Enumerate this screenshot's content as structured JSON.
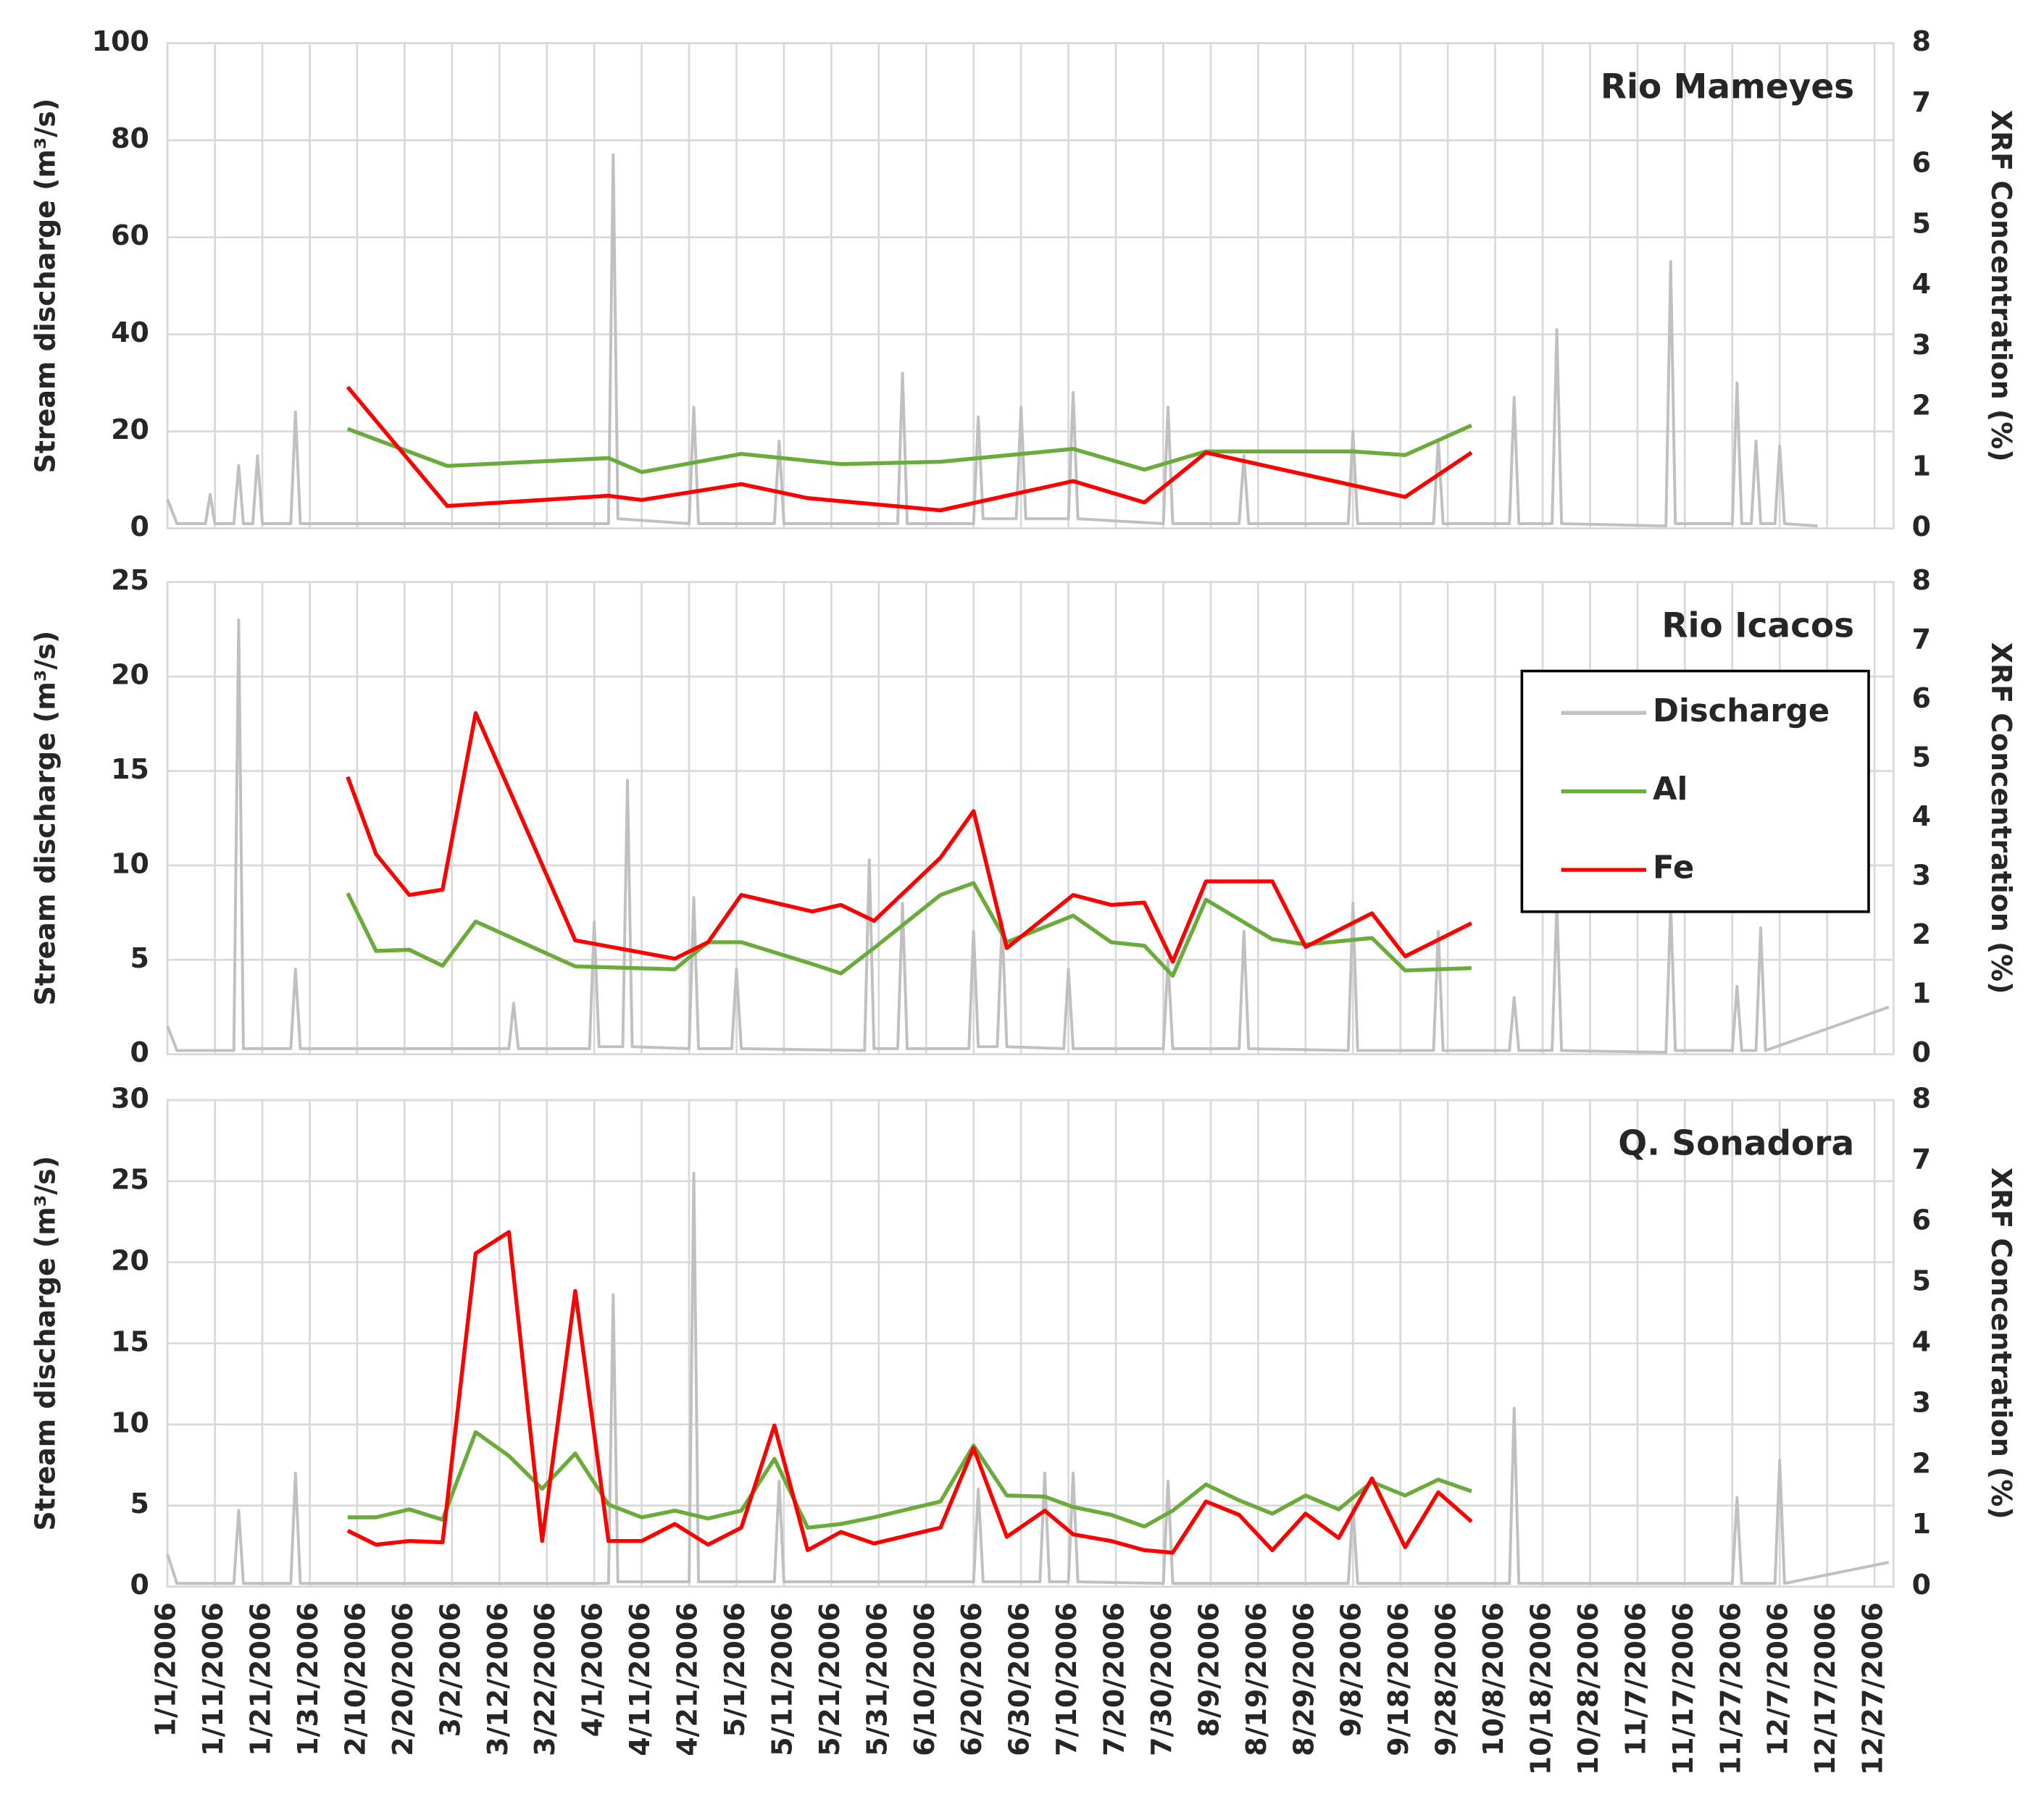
{
  "chart_data": [
    {
      "type": "line",
      "title": "Rio Mameyes",
      "ylabel": "Stream discharge (m³/s)",
      "y2label": "XRF Concentration (%)",
      "xlim": [
        "1/1/2006",
        "12/31/2006"
      ],
      "ylim": [
        0,
        100
      ],
      "yticks": [
        0,
        20,
        40,
        60,
        80,
        100
      ],
      "y2lim": [
        0,
        8
      ],
      "y2ticks": [
        0,
        1,
        2,
        3,
        4,
        5,
        6,
        7,
        8
      ],
      "grid": true,
      "series": [
        {
          "name": "Discharge",
          "color": "#c0c0c0",
          "x": [
            "1/1/2006",
            "1/3/2006",
            "1/9/2006",
            "1/10/2006",
            "1/11/2006",
            "1/15/2006",
            "1/16/2006",
            "1/17/2006",
            "1/19/2006",
            "1/20/2006",
            "1/21/2006",
            "1/27/2006",
            "1/28/2006",
            "1/29/2006",
            "4/4/2006",
            "4/5/2006",
            "4/6/2006",
            "4/21/2006",
            "4/22/2006",
            "4/23/2006",
            "5/9/2006",
            "5/10/2006",
            "5/11/2006",
            "6/4/2006",
            "6/5/2006",
            "6/6/2006",
            "6/20/2006",
            "6/21/2006",
            "6/22/2006",
            "6/29/2006",
            "6/30/2006",
            "7/1/2006",
            "7/10/2006",
            "7/11/2006",
            "7/12/2006",
            "7/30/2006",
            "7/31/2006",
            "8/1/2006",
            "8/15/2006",
            "8/16/2006",
            "8/17/2006",
            "9/7/2006",
            "9/8/2006",
            "9/9/2006",
            "9/25/2006",
            "9/26/2006",
            "9/27/2006",
            "10/11/2006",
            "10/12/2006",
            "10/13/2006",
            "10/20/2006",
            "10/21/2006",
            "10/22/2006",
            "11/13/2006",
            "11/14/2006",
            "11/15/2006",
            "11/27/2006",
            "11/28/2006",
            "11/29/2006",
            "12/1/2006",
            "12/2/2006",
            "12/3/2006",
            "12/6/2006",
            "12/7/2006",
            "12/8/2006",
            "12/15/2006"
          ],
          "values": [
            6,
            1,
            1,
            7,
            1,
            1,
            13,
            1,
            1,
            15,
            1,
            1,
            24,
            1,
            1,
            77,
            2,
            1,
            25,
            1,
            1,
            18,
            1,
            1,
            32,
            1,
            1,
            23,
            2,
            2,
            25,
            2,
            2,
            28,
            2,
            1,
            25,
            1,
            1,
            15,
            1,
            1,
            20,
            1,
            1,
            18,
            1,
            1,
            27,
            1,
            1,
            41,
            1,
            0.5,
            55,
            1,
            1,
            30,
            1,
            1,
            18,
            1,
            1,
            17,
            1,
            0.5
          ]
        },
        {
          "name": "Al",
          "color": "#6aab3c",
          "axis": "y2",
          "x": [
            "2/8/2006",
            "3/1/2006",
            "4/4/2006",
            "4/11/2006",
            "5/2/2006",
            "5/23/2006",
            "6/13/2006",
            "7/11/2006",
            "7/26/2006",
            "8/8/2006",
            "9/8/2006",
            "9/19/2006",
            "10/3/2006"
          ],
          "values": [
            1.64,
            1.03,
            1.16,
            0.93,
            1.23,
            1.06,
            1.1,
            1.31,
            0.97,
            1.27,
            1.27,
            1.21,
            1.7
          ]
        },
        {
          "name": "Fe",
          "color": "#ff0000",
          "axis": "y2",
          "x": [
            "2/8/2006",
            "3/1/2006",
            "4/4/2006",
            "4/11/2006",
            "5/2/2006",
            "5/16/2006",
            "6/13/2006",
            "7/11/2006",
            "7/26/2006",
            "8/8/2006",
            "9/19/2006",
            "10/3/2006"
          ],
          "values": [
            2.33,
            0.37,
            0.54,
            0.47,
            0.73,
            0.5,
            0.3,
            0.78,
            0.43,
            1.25,
            0.52,
            1.25
          ]
        }
      ]
    },
    {
      "type": "line",
      "title": "Rio Icacos",
      "ylabel": "Stream discharge (m³/s)",
      "y2label": "XRF Concentration (%)",
      "xlim": [
        "1/1/2006",
        "12/31/2006"
      ],
      "ylim": [
        0,
        25
      ],
      "yticks": [
        0,
        5,
        10,
        15,
        20,
        25
      ],
      "y2lim": [
        0,
        8
      ],
      "y2ticks": [
        0,
        1,
        2,
        3,
        4,
        5,
        6,
        7,
        8
      ],
      "grid": true,
      "legend": "right",
      "series": [
        {
          "name": "Discharge",
          "color": "#c0c0c0",
          "x": [
            "1/1/2006",
            "1/3/2006",
            "1/15/2006",
            "1/16/2006",
            "1/17/2006",
            "1/27/2006",
            "1/28/2006",
            "1/29/2006",
            "3/14/2006",
            "3/15/2006",
            "3/16/2006",
            "3/31/2006",
            "4/1/2006",
            "4/2/2006",
            "4/7/2006",
            "4/8/2006",
            "4/9/2006",
            "4/21/2006",
            "4/22/2006",
            "4/23/2006",
            "4/30/2006",
            "5/1/2006",
            "5/2/2006",
            "5/28/2006",
            "5/29/2006",
            "5/30/2006",
            "6/4/2006",
            "6/5/2006",
            "6/6/2006",
            "6/19/2006",
            "6/20/2006",
            "6/21/2006",
            "6/25/2006",
            "6/26/2006",
            "6/27/2006",
            "7/9/2006",
            "7/10/2006",
            "7/11/2006",
            "7/30/2006",
            "7/31/2006",
            "8/1/2006",
            "8/15/2006",
            "8/16/2006",
            "8/17/2006",
            "9/7/2006",
            "9/8/2006",
            "9/9/2006",
            "9/25/2006",
            "9/26/2006",
            "9/27/2006",
            "10/11/2006",
            "10/12/2006",
            "10/13/2006",
            "10/20/2006",
            "10/21/2006",
            "10/22/2006",
            "11/13/2006",
            "11/14/2006",
            "11/15/2006",
            "11/27/2006",
            "11/28/2006",
            "11/29/2006",
            "12/2/2006",
            "12/3/2006",
            "12/4/2006",
            "12/30/2006"
          ],
          "values": [
            1.5,
            0.2,
            0.2,
            23,
            0.3,
            0.3,
            4.5,
            0.3,
            0.3,
            2.7,
            0.3,
            0.3,
            7,
            0.4,
            0.4,
            14.5,
            0.4,
            0.3,
            8.3,
            0.3,
            0.3,
            4.5,
            0.3,
            0.2,
            10.3,
            0.3,
            0.3,
            8,
            0.3,
            0.3,
            6.5,
            0.4,
            0.4,
            7,
            0.4,
            0.3,
            4.5,
            0.3,
            0.3,
            5,
            0.3,
            0.3,
            6.5,
            0.3,
            0.2,
            8,
            0.2,
            0.2,
            6.5,
            0.2,
            0.2,
            3,
            0.2,
            0.2,
            8,
            0.2,
            0.1,
            8,
            0.2,
            0.2,
            3.6,
            0.2,
            0.2,
            6.7,
            0.2,
            2.5
          ]
        },
        {
          "name": "Al",
          "color": "#6aab3c",
          "axis": "y2",
          "x": [
            "2/8/2006",
            "2/14/2006",
            "2/21/2006",
            "2/28/2006",
            "3/7/2006",
            "3/28/2006",
            "4/18/2006",
            "4/25/2006",
            "5/2/2006",
            "5/17/2006",
            "5/23/2006",
            "5/30/2006",
            "6/13/2006",
            "6/20/2006",
            "6/27/2006",
            "7/11/2006",
            "7/19/2006",
            "7/26/2006",
            "8/1/2006",
            "8/8/2006",
            "8/22/2006",
            "8/29/2006",
            "9/12/2006",
            "9/19/2006",
            "10/3/2006"
          ],
          "values": [
            2.73,
            1.75,
            1.77,
            1.5,
            2.25,
            1.49,
            1.44,
            1.9,
            1.9,
            1.53,
            1.37,
            1.8,
            2.7,
            2.9,
            1.9,
            2.35,
            1.9,
            1.84,
            1.33,
            2.62,
            1.95,
            1.86,
            1.97,
            1.42,
            1.46
          ]
        },
        {
          "name": "Fe",
          "color": "#ff0000",
          "axis": "y2",
          "x": [
            "2/8/2006",
            "2/14/2006",
            "2/21/2006",
            "2/28/2006",
            "3/7/2006",
            "3/28/2006",
            "4/18/2006",
            "4/25/2006",
            "5/2/2006",
            "5/17/2006",
            "5/23/2006",
            "5/30/2006",
            "6/13/2006",
            "6/20/2006",
            "6/27/2006",
            "7/11/2006",
            "7/19/2006",
            "7/26/2006",
            "8/1/2006",
            "8/8/2006",
            "8/22/2006",
            "8/29/2006",
            "9/12/2006",
            "9/19/2006",
            "10/3/2006"
          ],
          "values": [
            4.7,
            3.39,
            2.7,
            2.79,
            5.78,
            1.93,
            1.62,
            1.9,
            2.7,
            2.42,
            2.53,
            2.26,
            3.33,
            4.12,
            1.8,
            2.7,
            2.53,
            2.57,
            1.57,
            2.93,
            2.93,
            1.82,
            2.39,
            1.66,
            2.22
          ]
        }
      ]
    },
    {
      "type": "line",
      "title": "Q. Sonadora",
      "ylabel": "Stream discharge (m³/s)",
      "y2label": "XRF Concentration (%)",
      "xlim": [
        "1/1/2006",
        "12/31/2006"
      ],
      "ylim": [
        0,
        30
      ],
      "yticks": [
        0,
        5,
        10,
        15,
        20,
        25,
        30
      ],
      "y2lim": [
        0,
        8
      ],
      "y2ticks": [
        0,
        1,
        2,
        3,
        4,
        5,
        6,
        7,
        8
      ],
      "grid": true,
      "xticks": [
        "1/1/2006",
        "1/11/2006",
        "1/21/2006",
        "1/31/2006",
        "2/10/2006",
        "2/20/2006",
        "3/2/2006",
        "3/12/2006",
        "3/22/2006",
        "4/1/2006",
        "4/11/2006",
        "4/21/2006",
        "5/1/2006",
        "5/11/2006",
        "5/21/2006",
        "5/31/2006",
        "6/10/2006",
        "6/20/2006",
        "6/30/2006",
        "7/10/2006",
        "7/20/2006",
        "7/30/2006",
        "8/9/2006",
        "8/19/2006",
        "8/29/2006",
        "9/8/2006",
        "9/18/2006",
        "9/28/2006",
        "10/8/2006",
        "10/18/2006",
        "10/28/2006",
        "11/7/2006",
        "11/17/2006",
        "11/27/2006",
        "12/7/2006",
        "12/17/2006",
        "12/27/2006"
      ],
      "series": [
        {
          "name": "Discharge",
          "color": "#c0c0c0",
          "x": [
            "1/1/2006",
            "1/3/2006",
            "1/15/2006",
            "1/16/2006",
            "1/17/2006",
            "1/27/2006",
            "1/28/2006",
            "1/29/2006",
            "4/4/2006",
            "4/5/2006",
            "4/6/2006",
            "4/21/2006",
            "4/22/2006",
            "4/23/2006",
            "5/9/2006",
            "5/10/2006",
            "5/11/2006",
            "6/20/2006",
            "6/21/2006",
            "6/22/2006",
            "7/4/2006",
            "7/5/2006",
            "7/6/2006",
            "7/10/2006",
            "7/11/2006",
            "7/12/2006",
            "7/30/2006",
            "7/31/2006",
            "8/1/2006",
            "9/7/2006",
            "9/8/2006",
            "9/9/2006",
            "10/11/2006",
            "10/12/2006",
            "10/13/2006",
            "11/27/2006",
            "11/28/2006",
            "11/29/2006",
            "12/6/2006",
            "12/7/2006",
            "12/8/2006",
            "12/30/2006"
          ],
          "values": [
            2,
            0.2,
            0.2,
            4.7,
            0.2,
            0.2,
            7,
            0.2,
            0.2,
            18,
            0.3,
            0.3,
            25.5,
            0.3,
            0.3,
            6.5,
            0.3,
            0.3,
            6,
            0.3,
            0.3,
            7,
            0.3,
            0.3,
            7,
            0.3,
            0.2,
            6.5,
            0.2,
            0.2,
            5,
            0.2,
            0.2,
            11,
            0.2,
            0.2,
            5.5,
            0.2,
            0.2,
            7.8,
            0.2,
            1.5
          ]
        },
        {
          "name": "Al",
          "color": "#6aab3c",
          "axis": "y2",
          "x": [
            "2/8/2006",
            "2/14/2006",
            "2/21/2006",
            "2/28/2006",
            "3/7/2006",
            "3/14/2006",
            "3/21/2006",
            "3/28/2006",
            "4/4/2006",
            "4/11/2006",
            "4/18/2006",
            "4/25/2006",
            "5/2/2006",
            "5/9/2006",
            "5/16/2006",
            "5/23/2006",
            "5/30/2006",
            "6/13/2006",
            "6/20/2006",
            "6/27/2006",
            "7/5/2006",
            "7/11/2006",
            "7/19/2006",
            "7/26/2006",
            "8/1/2006",
            "8/8/2006",
            "8/15/2006",
            "8/22/2006",
            "8/29/2006",
            "9/5/2006",
            "9/12/2006",
            "9/19/2006",
            "9/26/2006",
            "10/3/2006"
          ],
          "values": [
            1.14,
            1.14,
            1.27,
            1.1,
            2.54,
            2.15,
            1.61,
            2.19,
            1.35,
            1.14,
            1.25,
            1.12,
            1.25,
            2.1,
            0.97,
            1.03,
            1.14,
            1.4,
            2.32,
            1.5,
            1.48,
            1.31,
            1.18,
            0.99,
            1.25,
            1.68,
            1.42,
            1.2,
            1.5,
            1.27,
            1.72,
            1.5,
            1.76,
            1.57
          ]
        },
        {
          "name": "Fe",
          "color": "#ff0000",
          "axis": "y2",
          "x": [
            "2/8/2006",
            "2/14/2006",
            "2/21/2006",
            "2/28/2006",
            "3/7/2006",
            "3/14/2006",
            "3/21/2006",
            "3/28/2006",
            "4/4/2006",
            "4/11/2006",
            "4/18/2006",
            "4/25/2006",
            "5/2/2006",
            "5/9/2006",
            "5/16/2006",
            "5/23/2006",
            "5/30/2006",
            "6/13/2006",
            "6/20/2006",
            "6/27/2006",
            "7/5/2006",
            "7/11/2006",
            "7/19/2006",
            "7/26/2006",
            "8/1/2006",
            "8/8/2006",
            "8/15/2006",
            "8/22/2006",
            "8/29/2006",
            "9/5/2006",
            "9/12/2006",
            "9/19/2006",
            "9/26/2006",
            "10/3/2006"
          ],
          "values": [
            0.92,
            0.69,
            0.75,
            0.73,
            5.48,
            5.83,
            0.75,
            4.86,
            0.75,
            0.75,
            1.03,
            0.69,
            0.97,
            2.65,
            0.6,
            0.9,
            0.71,
            0.97,
            2.28,
            0.82,
            1.25,
            0.86,
            0.75,
            0.6,
            0.56,
            1.4,
            1.18,
            0.6,
            1.2,
            0.8,
            1.78,
            0.65,
            1.55,
            1.07
          ]
        }
      ]
    }
  ]
}
